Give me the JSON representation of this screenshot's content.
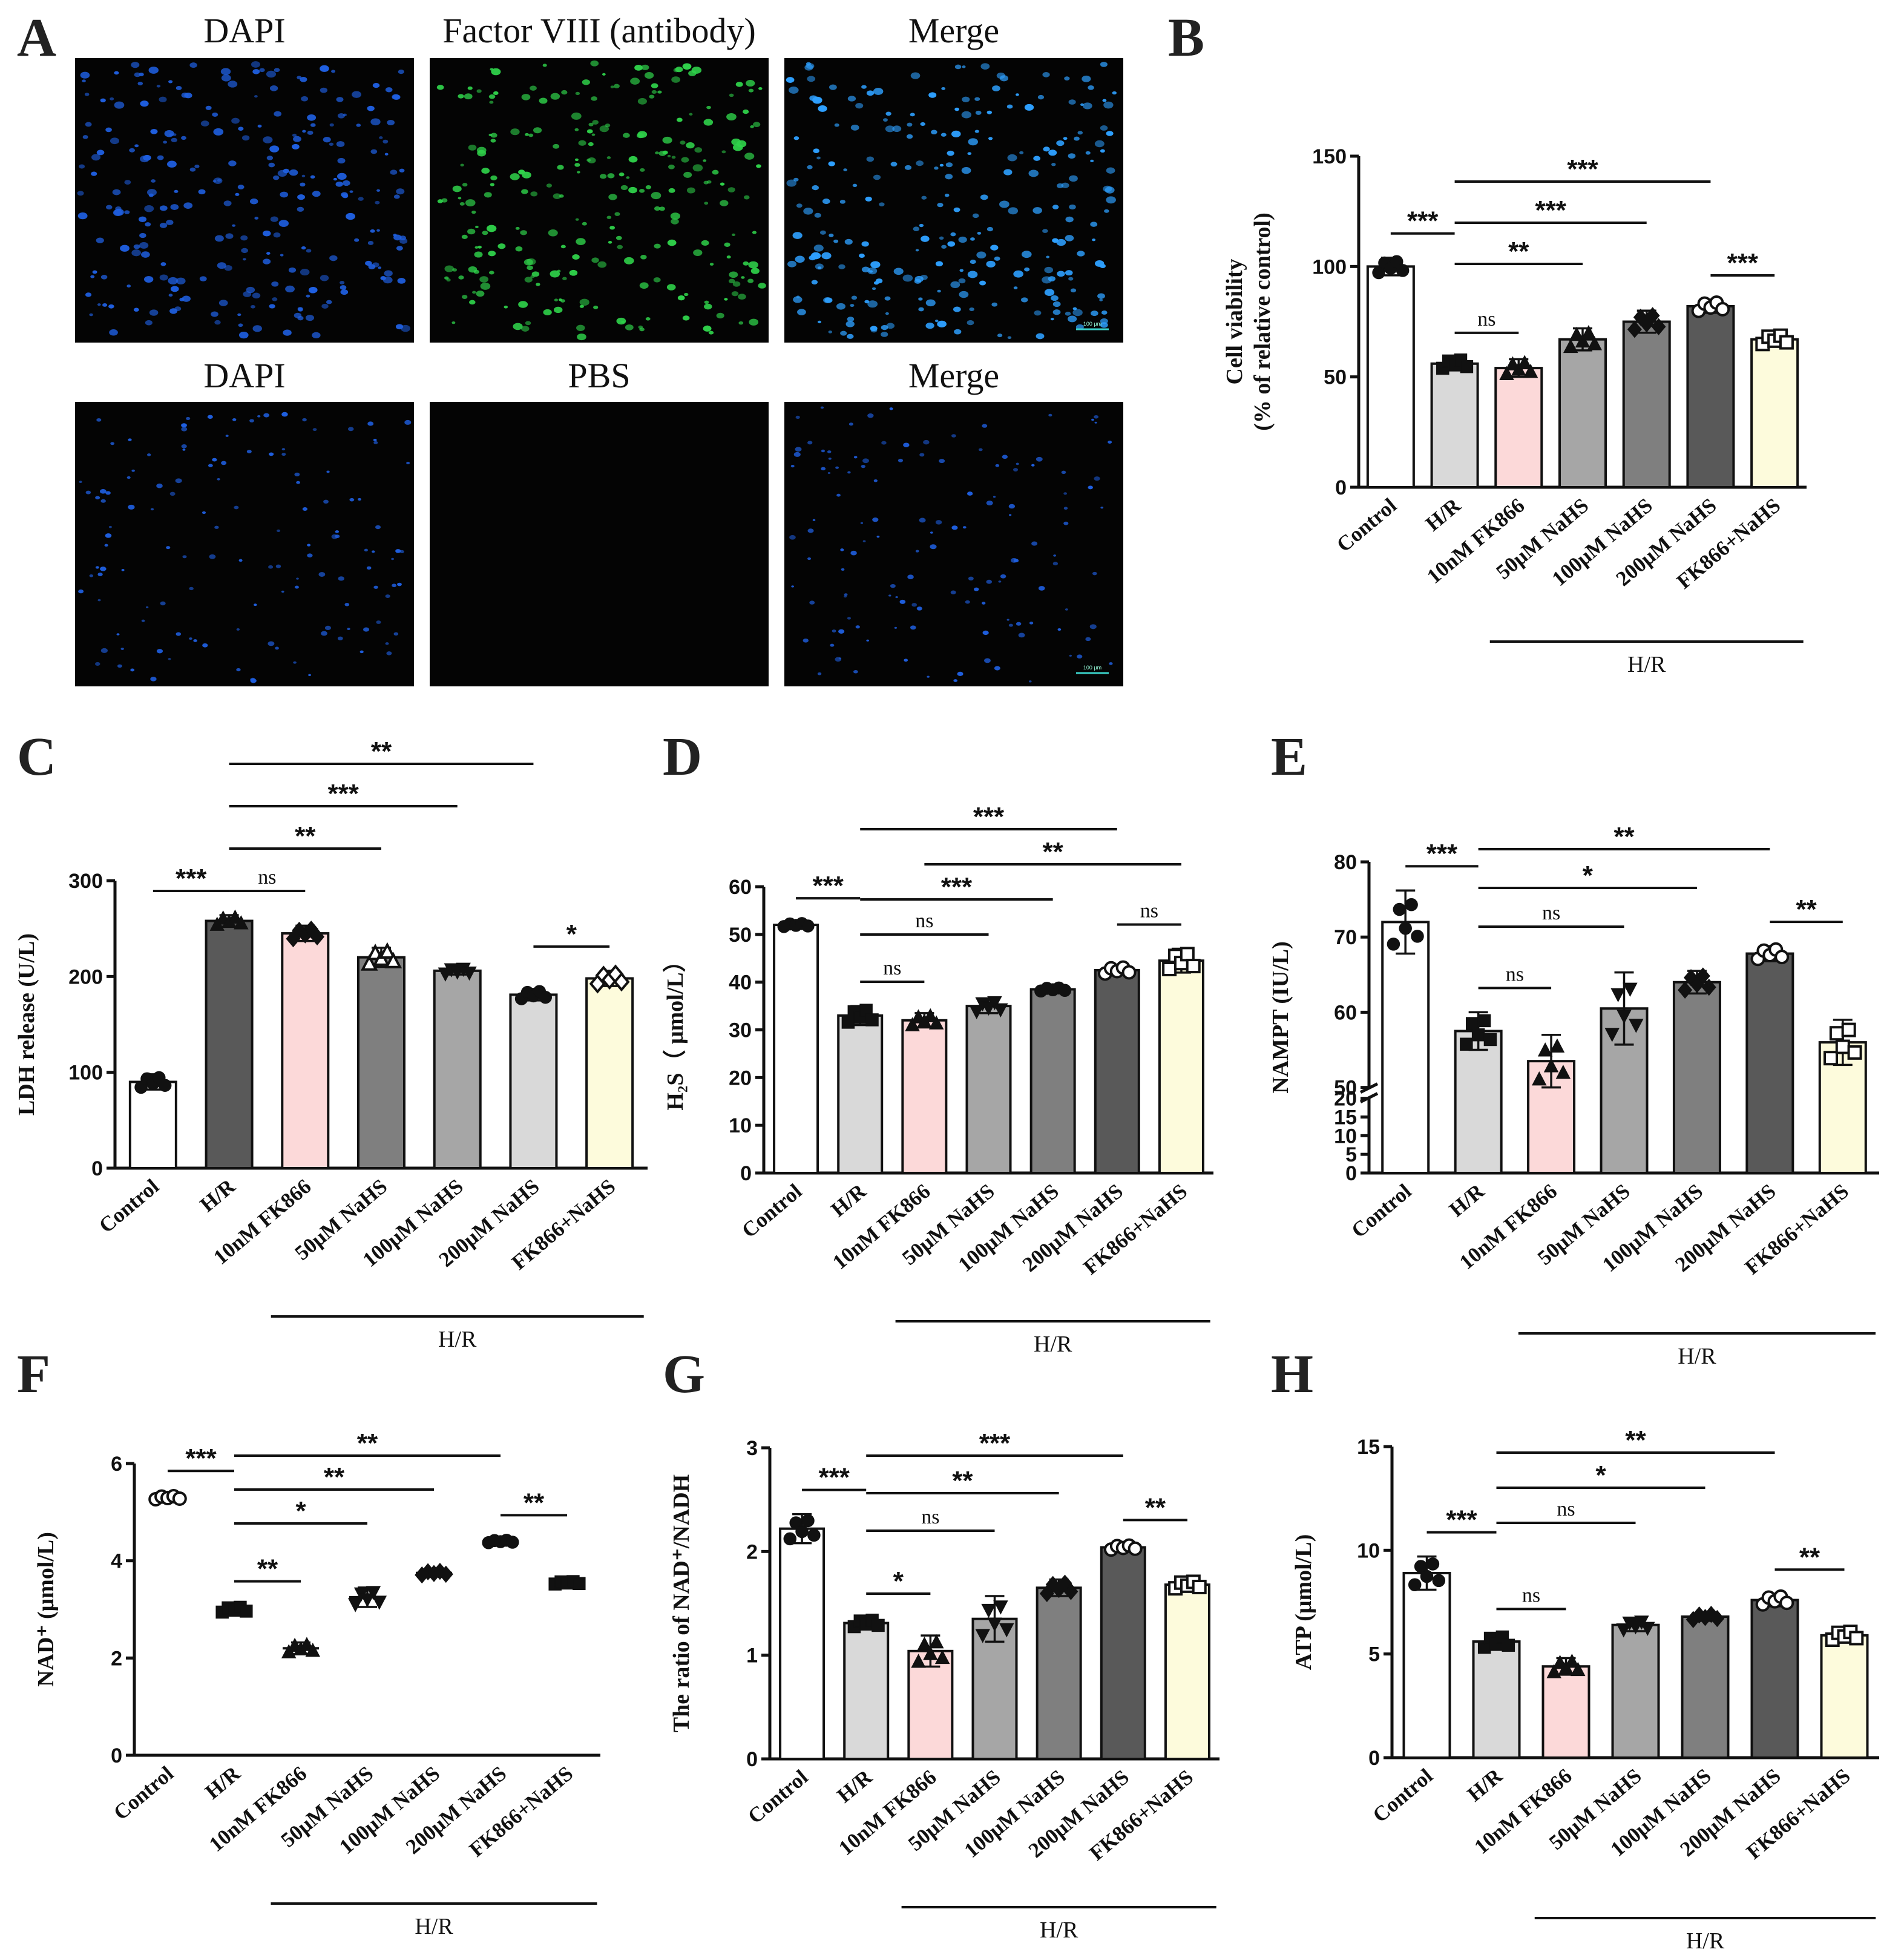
{
  "panel_letters": [
    "A",
    "B",
    "C",
    "D",
    "E",
    "F",
    "G",
    "H"
  ],
  "micrographs": {
    "row1_titles": [
      "DAPI",
      "Factor VIII (antibody)",
      "Merge"
    ],
    "row2_titles": [
      "DAPI",
      "PBS",
      "Merge"
    ],
    "scale_bar": "100 μm",
    "colors": {
      "dapi": "#1f5fe0",
      "factor_viii": "#2fd14a",
      "merge": "#2ea0ff",
      "background": "#040404"
    }
  },
  "chart_data": [
    {
      "panel": "B",
      "type": "bar",
      "categories": [
        "Control",
        "H/R",
        "10nM FK866",
        "50μM NaHS",
        "100μM NaHS",
        "200μM NaHS",
        "FK866+NaHS"
      ],
      "values": [
        100,
        56,
        54,
        67,
        75,
        82,
        67
      ],
      "errors": [
        4,
        3,
        4,
        5,
        5,
        3,
        3
      ],
      "ylabel": [
        "Cell viability",
        "(% of relative control)"
      ],
      "ylim": [
        0,
        150
      ],
      "yticks": [
        0,
        50,
        100,
        150
      ],
      "group_label": "H/R",
      "colors": [
        "#ffffff",
        "#d9d9d9",
        "#fcd9d9",
        "#a6a6a6",
        "#7f7f7f",
        "#595959",
        "#fdfbdc"
      ],
      "markers": [
        "circle",
        "square",
        "triangle",
        "triangle",
        "diamond",
        "circle-open",
        "square-open"
      ],
      "comparisons": [
        {
          "a": 0,
          "b": 1,
          "label": "***"
        },
        {
          "a": 1,
          "b": 2,
          "label": "ns"
        },
        {
          "a": 1,
          "b": 3,
          "label": "**"
        },
        {
          "a": 1,
          "b": 4,
          "label": "***"
        },
        {
          "a": 1,
          "b": 5,
          "label": "***"
        },
        {
          "a": 5,
          "b": 6,
          "label": "***"
        }
      ]
    },
    {
      "panel": "C",
      "type": "bar",
      "categories": [
        "Control",
        "H/R",
        "10nM FK866",
        "50μM NaHS",
        "100μM NaHS",
        "200μM NaHS",
        "FK866+NaHS"
      ],
      "values": [
        90,
        258,
        245,
        220,
        206,
        181,
        198
      ],
      "errors": [
        8,
        6,
        8,
        10,
        4,
        6,
        8
      ],
      "ylabel": [
        "LDH release (U/L)"
      ],
      "ylim": [
        0,
        300
      ],
      "yticks": [
        0,
        100,
        200,
        300
      ],
      "group_label": "H/R",
      "colors": [
        "#ffffff",
        "#595959",
        "#fcd9d9",
        "#7f7f7f",
        "#a6a6a6",
        "#d9d9d9",
        "#fdfbdc"
      ],
      "markers": [
        "circle",
        "triangle",
        "diamond",
        "triangle-open",
        "triangle-down",
        "circle",
        "diamond-open"
      ],
      "comparisons": [
        {
          "a": 0,
          "b": 1,
          "label": "***"
        },
        {
          "a": 1,
          "b": 2,
          "label": "ns"
        },
        {
          "a": 1,
          "b": 5,
          "label": "**"
        },
        {
          "a": 1,
          "b": 4,
          "label": "***"
        },
        {
          "a": 1,
          "b": 3,
          "label": "**"
        },
        {
          "a": 5,
          "b": 6,
          "label": "*"
        }
      ]
    },
    {
      "panel": "D",
      "type": "bar",
      "categories": [
        "Control",
        "H/R",
        "10nM FK866",
        "50μM NaHS",
        "100μM NaHS",
        "200μM NaHS",
        "FK866+NaHS"
      ],
      "values": [
        52,
        33,
        32,
        35,
        38.5,
        42.5,
        44.5
      ],
      "errors": [
        0.5,
        2,
        1.5,
        1.5,
        0.5,
        1,
        2.5
      ],
      "ylabel": [
        "H₂S（ μmol/L）"
      ],
      "ylim": [
        0,
        60
      ],
      "yticks": [
        0,
        10,
        20,
        30,
        40,
        50,
        60
      ],
      "group_label": "H/R",
      "colors": [
        "#ffffff",
        "#d9d9d9",
        "#fcd9d9",
        "#a6a6a6",
        "#7f7f7f",
        "#595959",
        "#fdfbdc"
      ],
      "markers": [
        "circle",
        "square",
        "triangle",
        "triangle-down",
        "circle",
        "circle-open",
        "square-open"
      ],
      "comparisons": [
        {
          "a": 0,
          "b": 1,
          "label": "***"
        },
        {
          "a": 1,
          "b": 2,
          "label": "ns"
        },
        {
          "a": 1,
          "b": 3,
          "label": "ns"
        },
        {
          "a": 1,
          "b": 4,
          "label": "***"
        },
        {
          "a": 1,
          "b": 5,
          "label": "***"
        },
        {
          "a": 2,
          "b": 6,
          "label": "**"
        },
        {
          "a": 5,
          "b": 6,
          "label": "ns"
        }
      ]
    },
    {
      "panel": "E",
      "type": "bar",
      "categories": [
        "Control",
        "H/R",
        "10nM FK866",
        "50μM NaHS",
        "100μM NaHS",
        "200μM NaHS",
        "FK866+NaHS"
      ],
      "values": [
        72,
        57.5,
        53.5,
        60.5,
        64,
        67.8,
        56
      ],
      "errors": [
        4.2,
        2.5,
        3.5,
        4.8,
        1.5,
        1,
        3
      ],
      "ylabel": [
        "NAMPT (IU/L)"
      ],
      "ylim": [
        0,
        80
      ],
      "broken_axis": [
        20,
        50
      ],
      "yticks": [
        0,
        5,
        10,
        15,
        20,
        50,
        60,
        70,
        80
      ],
      "group_label": "H/R",
      "colors": [
        "#ffffff",
        "#d9d9d9",
        "#fcd9d9",
        "#a6a6a6",
        "#7f7f7f",
        "#595959",
        "#fdfbdc"
      ],
      "markers": [
        "circle",
        "square",
        "triangle",
        "triangle-down",
        "diamond",
        "circle-open",
        "square-open"
      ],
      "comparisons": [
        {
          "a": 0,
          "b": 1,
          "label": "***"
        },
        {
          "a": 1,
          "b": 2,
          "label": "ns"
        },
        {
          "a": 1,
          "b": 3,
          "label": "ns"
        },
        {
          "a": 1,
          "b": 4,
          "label": "*"
        },
        {
          "a": 1,
          "b": 5,
          "label": "**"
        },
        {
          "a": 5,
          "b": 6,
          "label": "**"
        }
      ]
    },
    {
      "panel": "F",
      "type": "scatter",
      "categories": [
        "Control",
        "H/R",
        "10nM FK866",
        "50μM NaHS",
        "100μM NaHS",
        "200μM NaHS",
        "FK866+NaHS"
      ],
      "values": [
        5.3,
        3.0,
        2.2,
        3.25,
        3.75,
        4.4,
        3.55
      ],
      "errors": [
        0.05,
        0.08,
        0.12,
        0.2,
        0.06,
        0.04,
        0.04
      ],
      "ylabel": [
        "NAD⁺ (μmol/L)"
      ],
      "ylim": [
        0,
        6
      ],
      "yticks": [
        0,
        2,
        4,
        6
      ],
      "group_label": "H/R",
      "colors": [
        "#ffffff",
        "#ffffff",
        "#ffffff",
        "#ffffff",
        "#ffffff",
        "#ffffff",
        "#ffffff"
      ],
      "markers": [
        "circle-open",
        "square",
        "triangle",
        "triangle-down",
        "diamond",
        "circle",
        "square"
      ],
      "comparisons": [
        {
          "a": 0,
          "b": 1,
          "label": "***"
        },
        {
          "a": 1,
          "b": 2,
          "label": "**"
        },
        {
          "a": 1,
          "b": 3,
          "label": "*"
        },
        {
          "a": 1,
          "b": 4,
          "label": "**"
        },
        {
          "a": 1,
          "b": 5,
          "label": "**"
        },
        {
          "a": 5,
          "b": 6,
          "label": "**"
        }
      ]
    },
    {
      "panel": "G",
      "type": "bar",
      "categories": [
        "Control",
        "H/R",
        "10nM FK866",
        "50μM NaHS",
        "100μM NaHS",
        "200μM NaHS",
        "FK866+NaHS"
      ],
      "values": [
        2.22,
        1.31,
        1.04,
        1.35,
        1.65,
        2.04,
        1.68
      ],
      "errors": [
        0.14,
        0.05,
        0.15,
        0.22,
        0.08,
        0.03,
        0.05
      ],
      "ylabel": [
        "The ratio of NAD⁺/NADH"
      ],
      "ylim": [
        0,
        3
      ],
      "yticks": [
        0,
        1,
        2,
        3
      ],
      "group_label": "H/R",
      "colors": [
        "#ffffff",
        "#d9d9d9",
        "#fcd9d9",
        "#a6a6a6",
        "#7f7f7f",
        "#595959",
        "#fdfbdc"
      ],
      "markers": [
        "circle",
        "square",
        "triangle",
        "triangle-down",
        "diamond",
        "circle-open",
        "square-open"
      ],
      "comparisons": [
        {
          "a": 0,
          "b": 1,
          "label": "***"
        },
        {
          "a": 1,
          "b": 2,
          "label": "*"
        },
        {
          "a": 1,
          "b": 3,
          "label": "ns"
        },
        {
          "a": 1,
          "b": 4,
          "label": "**"
        },
        {
          "a": 1,
          "b": 5,
          "label": "***"
        },
        {
          "a": 5,
          "b": 6,
          "label": "**"
        }
      ]
    },
    {
      "panel": "H",
      "type": "bar",
      "categories": [
        "Control",
        "H/R",
        "10nM FK866",
        "50μM NaHS",
        "100μM NaHS",
        "200μM NaHS",
        "FK866+NaHS"
      ],
      "values": [
        8.9,
        5.6,
        4.4,
        6.4,
        6.8,
        7.6,
        5.9
      ],
      "errors": [
        0.8,
        0.4,
        0.4,
        0.3,
        0.2,
        0.3,
        0.3
      ],
      "ylabel": [
        "ATP (μmol/L)"
      ],
      "ylim": [
        0,
        15
      ],
      "yticks": [
        0,
        5,
        10,
        15
      ],
      "group_label": "H/R",
      "colors": [
        "#ffffff",
        "#d9d9d9",
        "#fcd9d9",
        "#a6a6a6",
        "#7f7f7f",
        "#595959",
        "#fdfbdc"
      ],
      "markers": [
        "circle",
        "square",
        "triangle",
        "triangle-down",
        "diamond",
        "circle-open",
        "square-open"
      ],
      "comparisons": [
        {
          "a": 0,
          "b": 1,
          "label": "***"
        },
        {
          "a": 1,
          "b": 2,
          "label": "ns"
        },
        {
          "a": 1,
          "b": 3,
          "label": "ns"
        },
        {
          "a": 1,
          "b": 4,
          "label": "*"
        },
        {
          "a": 1,
          "b": 5,
          "label": "**"
        },
        {
          "a": 5,
          "b": 6,
          "label": "**"
        }
      ]
    }
  ]
}
